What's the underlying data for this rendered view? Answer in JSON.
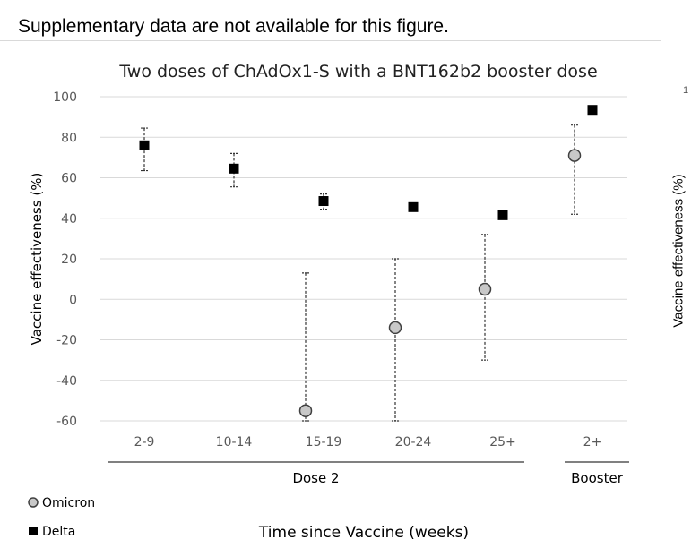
{
  "page": {
    "caption": "Supplementary data are not available for this figure."
  },
  "chart_data": {
    "type": "scatter",
    "title": "Two doses of ChAdOx1-S with a BNT162b2 booster dose",
    "xlabel": "Time since Vaccine (weeks)",
    "ylabel": "Vaccine effectiveness (%)",
    "ylim": [
      -60,
      100
    ],
    "yticks": [
      -60,
      -40,
      -20,
      0,
      20,
      40,
      60,
      80,
      100
    ],
    "categories": [
      "2-9",
      "10-14",
      "15-19",
      "20-24",
      "25+",
      "2+"
    ],
    "groups": [
      {
        "label": "Dose 2",
        "categories": [
          "2-9",
          "10-14",
          "15-19",
          "20-24",
          "25+"
        ]
      },
      {
        "label": "Booster",
        "categories": [
          "2+"
        ]
      }
    ],
    "grid": "horizontal",
    "legend_position": "bottom-left",
    "series": [
      {
        "name": "Omicron",
        "marker": "circle",
        "color": "#c8c8c8",
        "values": [
          null,
          null,
          -55,
          -14,
          5,
          71
        ],
        "ci_low": [
          null,
          null,
          -60,
          -60,
          -30,
          42
        ],
        "ci_high": [
          null,
          null,
          13,
          20,
          32,
          86
        ]
      },
      {
        "name": "Delta",
        "marker": "square",
        "color": "#000000",
        "values": [
          76,
          64.5,
          48.5,
          45.5,
          41.5,
          93.5
        ],
        "ci_low": [
          63.5,
          55.5,
          44.5,
          44.5,
          null,
          null
        ],
        "ci_high": [
          84.5,
          72,
          52,
          47,
          null,
          null
        ]
      }
    ]
  },
  "side_panel": {
    "ylabel": "Vaccine effectiveness (%)",
    "tick_top": "1"
  }
}
